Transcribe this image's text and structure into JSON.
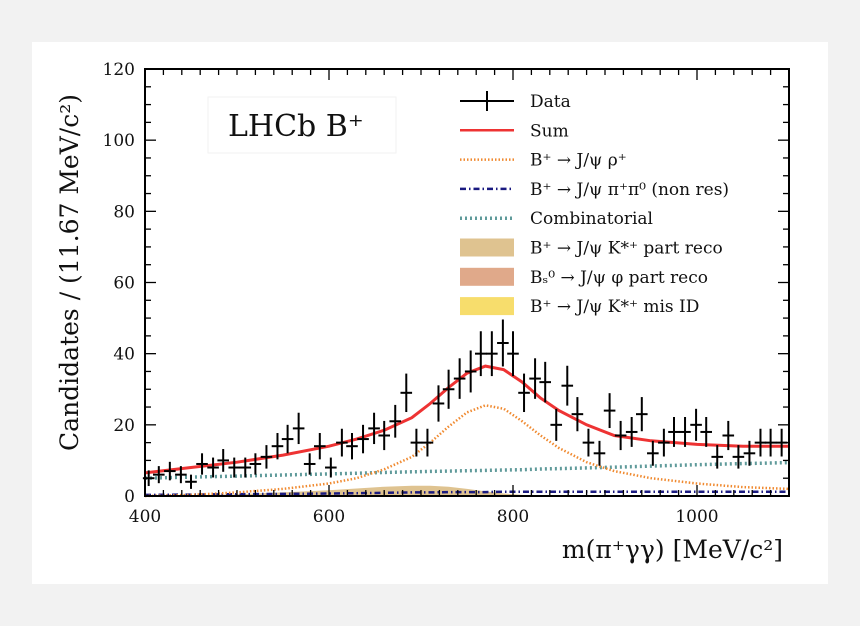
{
  "chart_data": {
    "type": "scatter",
    "tag": "LHCb B⁺",
    "xlabel": "m(π⁺γγ) [MeV/c²]",
    "ylabel": "Candidates / (11.67 MeV/c²)",
    "xlim": [
      400,
      1100
    ],
    "ylim": [
      0,
      120
    ],
    "xticks": [
      "400",
      "600",
      "800",
      "1000"
    ],
    "yticks": [
      "0",
      "20",
      "40",
      "60",
      "80",
      "100",
      "120"
    ],
    "legend_position": "top-right",
    "legend": [
      {
        "label": "Data",
        "style": "errorbar",
        "color": "#000000"
      },
      {
        "label": "Sum",
        "style": "solid",
        "color": "#ee3333"
      },
      {
        "label": "B⁺ → J/ψ ρ⁺",
        "style": "dotted",
        "color": "#f08a30"
      },
      {
        "label": "B⁺ → J/ψ π⁺π⁰ (non res)",
        "style": "dashdot",
        "color": "#1a1a80"
      },
      {
        "label": "Combinatorial",
        "style": "dotted",
        "color": "#5f9a9a"
      },
      {
        "label": "B⁺ → J/ψ K*⁺ part reco",
        "style": "fill",
        "color": "#dfc390"
      },
      {
        "label": "Bₛ⁰ → J/ψ φ part reco",
        "style": "fill",
        "color": "#e0a98a"
      },
      {
        "label": "B⁺ → J/ψ K*⁺ mis ID",
        "style": "fill",
        "color": "#f7dd6c"
      }
    ],
    "data_points": {
      "x": [
        404,
        415,
        427,
        439,
        450,
        462,
        474,
        485,
        497,
        509,
        520,
        532,
        544,
        555,
        567,
        579,
        590,
        602,
        614,
        625,
        637,
        649,
        660,
        672,
        684,
        695,
        707,
        719,
        730,
        742,
        754,
        765,
        777,
        789,
        800,
        812,
        824,
        835,
        847,
        859,
        870,
        882,
        894,
        905,
        917,
        929,
        940,
        952,
        964,
        975,
        987,
        999,
        1010,
        1022,
        1034,
        1045,
        1057,
        1069,
        1080,
        1092
      ],
      "y": [
        5,
        6,
        7,
        6,
        4,
        9,
        8,
        10,
        8,
        8,
        9,
        11,
        14,
        16,
        19,
        9,
        14,
        8,
        15,
        14,
        16,
        19,
        17,
        21,
        29,
        15,
        15,
        26,
        30,
        33,
        35,
        40,
        40,
        43,
        40,
        29,
        33,
        32,
        20,
        31,
        23,
        15,
        12,
        24,
        17,
        18,
        23,
        12,
        15,
        18,
        18,
        20,
        18,
        11,
        17,
        11,
        12,
        15,
        15,
        15
      ],
      "yerr": [
        2.2,
        2.4,
        2.6,
        2.4,
        2.0,
        3.0,
        2.8,
        3.2,
        2.8,
        2.8,
        3.0,
        3.3,
        3.7,
        4.0,
        4.4,
        3.0,
        3.7,
        2.8,
        3.9,
        3.7,
        4.0,
        4.4,
        4.1,
        4.6,
        5.4,
        3.9,
        3.9,
        5.1,
        5.5,
        5.7,
        5.9,
        6.3,
        6.3,
        6.6,
        6.3,
        5.4,
        5.7,
        5.7,
        4.5,
        5.6,
        4.8,
        3.9,
        3.5,
        4.9,
        4.1,
        4.2,
        4.8,
        3.5,
        3.9,
        4.2,
        4.2,
        4.5,
        4.2,
        3.3,
        4.1,
        3.3,
        3.5,
        3.9,
        3.9,
        3.9
      ]
    },
    "curves": {
      "x": [
        400,
        450,
        500,
        550,
        600,
        630,
        660,
        690,
        710,
        730,
        750,
        770,
        790,
        810,
        830,
        850,
        880,
        910,
        950,
        1000,
        1050,
        1100
      ],
      "sum": [
        6.5,
        8.0,
        9.5,
        11.5,
        14,
        16,
        18.5,
        22,
        26,
        30.5,
        34.5,
        36.5,
        35.5,
        32,
        27.5,
        24,
        20,
        17,
        15.5,
        14.5,
        14,
        14
      ],
      "rho": [
        0,
        0.3,
        1,
        2,
        3.5,
        5,
        7.5,
        11,
        15,
        19.5,
        23.5,
        25.5,
        24.5,
        21,
        17,
        13.5,
        9.5,
        7,
        5,
        3.5,
        2.5,
        2
      ],
      "nonres": [
        0.3,
        0.4,
        0.5,
        0.6,
        0.7,
        0.8,
        0.9,
        1,
        1,
        1.1,
        1.1,
        1.1,
        1.2,
        1.2,
        1.2,
        1.2,
        1.2,
        1.2,
        1.2,
        1.2,
        1.2,
        1.2
      ],
      "combinatorial": [
        5,
        5.3,
        5.6,
        5.9,
        6.2,
        6.4,
        6.6,
        6.8,
        6.9,
        7,
        7.1,
        7.2,
        7.3,
        7.4,
        7.6,
        7.7,
        7.9,
        8.1,
        8.4,
        8.8,
        9.1,
        9.4
      ],
      "kstar_part_reco": [
        0,
        0.2,
        0.5,
        1,
        1.6,
        2.1,
        2.6,
        2.9,
        2.9,
        2.6,
        2,
        1.3,
        0.7,
        0.3,
        0.1,
        0,
        0,
        0,
        0,
        0,
        0,
        0
      ]
    }
  }
}
